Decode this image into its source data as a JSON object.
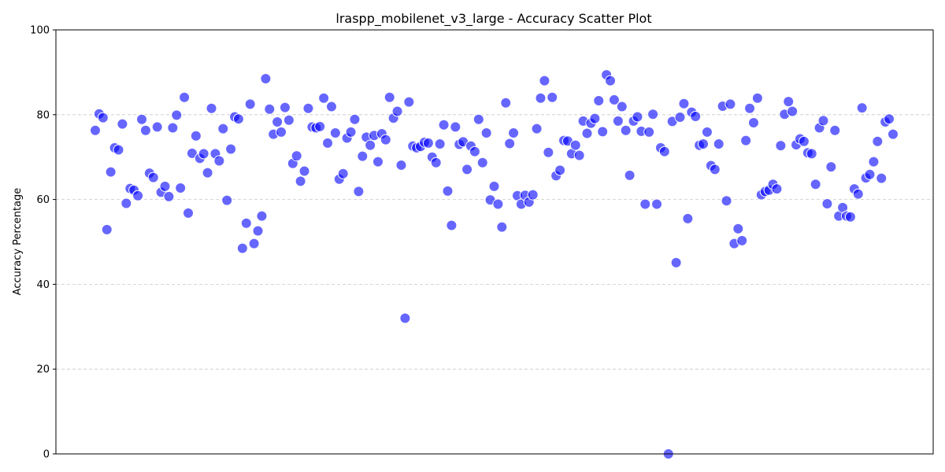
{
  "chart_data": {
    "type": "scatter",
    "title": "lraspp_mobilenet_v3_large - Accuracy Scatter Plot",
    "xlabel": "",
    "ylabel": "Accuracy Percentage",
    "ylim": [
      0,
      100
    ],
    "yticks": [
      "0",
      "20",
      "40",
      "60",
      "80",
      "100"
    ],
    "grid": true,
    "point_color": "#0000ff",
    "series": [
      {
        "values": [
          76.3,
          80.2,
          79.3,
          52.9,
          66.5,
          72.2,
          71.7,
          77.8,
          59.1,
          62.6,
          62.2,
          60.9,
          78.9,
          76.3,
          66.2,
          65.2,
          77.1,
          61.7,
          63.1,
          60.7,
          76.9,
          79.9,
          62.7,
          84.1,
          56.8,
          70.9,
          75.0,
          69.7,
          70.8,
          66.3,
          81.5,
          70.8,
          69.1,
          76.7,
          59.8,
          71.9,
          79.5,
          79.0,
          48.5,
          54.4,
          82.5,
          49.6,
          52.6,
          56.1,
          88.5,
          81.3,
          75.4,
          78.3,
          75.9,
          81.7,
          78.7,
          68.5,
          70.3,
          64.3,
          66.7,
          81.5,
          77.1,
          76.9,
          77.2,
          83.9,
          73.3,
          81.9,
          75.7,
          64.8,
          66.1,
          74.5,
          75.9,
          78.9,
          61.9,
          70.2,
          74.7,
          72.8,
          75.1,
          68.9,
          75.5,
          74.1,
          84.1,
          79.2,
          80.8,
          68.1,
          32.0,
          83.0,
          72.6,
          72.2,
          72.5,
          73.5,
          73.3,
          70.0,
          68.7,
          73.1,
          77.6,
          62.0,
          53.9,
          77.1,
          73.0,
          73.6,
          67.1,
          72.6,
          71.3,
          78.9,
          68.7,
          75.7,
          59.9,
          63.1,
          58.9,
          53.5,
          82.8,
          73.2,
          75.7,
          60.9,
          58.9,
          61.0,
          59.4,
          61.1,
          76.7,
          83.9,
          88.0,
          71.1,
          84.1,
          65.6,
          66.9,
          73.9,
          73.8,
          70.8,
          72.8,
          70.4,
          78.5,
          75.6,
          78.0,
          79.1,
          83.3,
          76.0,
          89.4,
          88.0,
          83.5,
          78.5,
          81.9,
          76.3,
          65.7,
          78.5,
          79.5,
          76.1,
          58.9,
          75.9,
          80.1,
          58.9,
          72.2,
          71.3,
          0.0,
          78.4,
          45.1,
          79.4,
          82.6,
          55.5,
          80.6,
          79.6,
          72.8,
          73.1,
          75.9,
          68.0,
          67.1,
          73.1,
          82.0,
          59.7,
          82.5,
          49.6,
          53.1,
          50.3,
          73.9,
          81.5,
          78.1,
          83.9,
          61.1,
          61.9,
          62.2,
          63.6,
          62.5,
          72.7,
          80.1,
          83.1,
          80.8,
          72.9,
          74.3,
          73.7,
          71.0,
          70.8,
          63.6,
          76.9,
          78.6,
          59.0,
          67.7,
          76.3,
          56.1,
          58.1,
          56.1,
          55.9,
          62.5,
          61.3,
          81.6,
          65.1,
          65.9,
          68.9,
          73.7,
          65.0,
          78.3,
          79.0,
          75.4
        ]
      }
    ]
  }
}
